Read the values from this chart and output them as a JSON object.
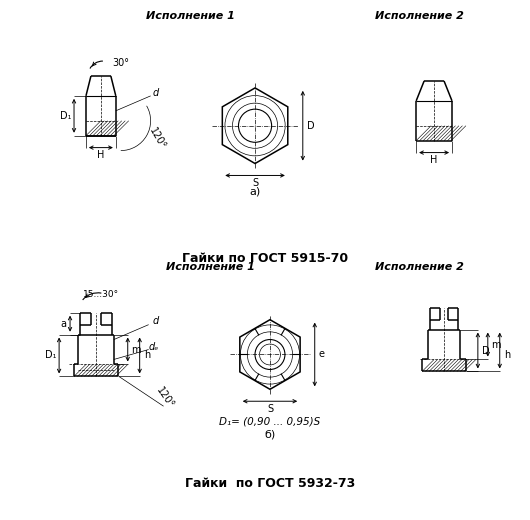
{
  "bg_color": "#ffffff",
  "fig_width": 5.3,
  "fig_height": 5.2,
  "dpi": 100,
  "section_a_title": "Гайки по ГОСТ 5915-70",
  "section_b_title": "Гайки  по ГОСТ 5932-73",
  "label_isp1": "Исполнение 1",
  "label_isp2": "Исполнение 2",
  "label_a": "а)",
  "label_b": "б)",
  "formula": "D₁= (0,90 ... 0,95)S",
  "line_color": "#000000",
  "hatch_color": "#000000",
  "dim_color": "#000000"
}
